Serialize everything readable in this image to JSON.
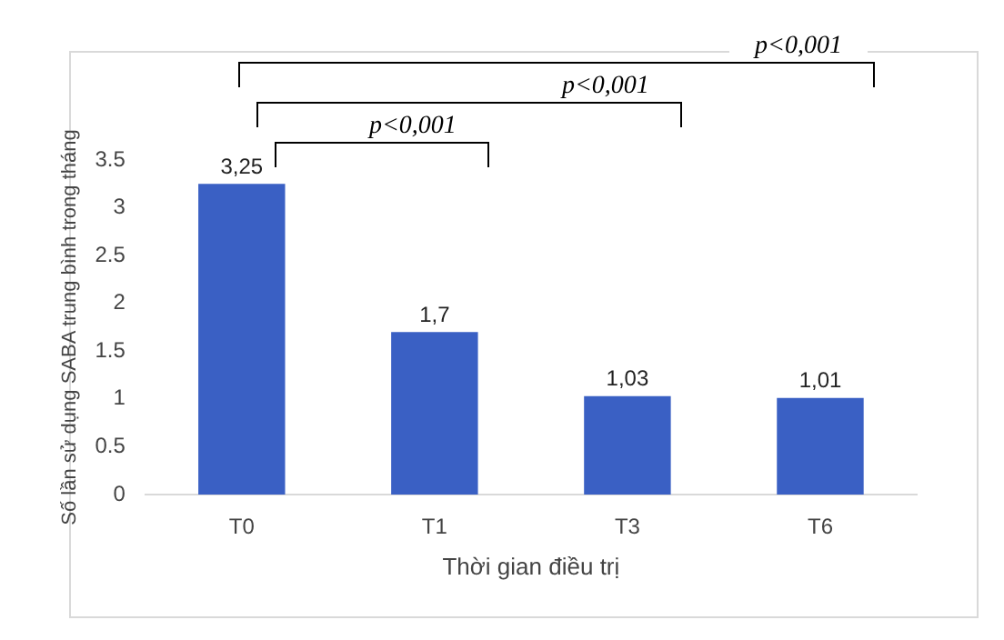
{
  "chart_data": {
    "type": "bar",
    "categories": [
      "T0",
      "T1",
      "T3",
      "T6"
    ],
    "values": [
      3.25,
      1.7,
      1.03,
      1.01
    ],
    "value_labels": [
      "3,25",
      "1,7",
      "1,03",
      "1,01"
    ],
    "color": "#3a60c4",
    "ylabel": "Số lần sử dụng SABA trung bình trong tháng",
    "xlabel": "Thời gian điều trị",
    "ylim": [
      0,
      3.5
    ],
    "yticks": [
      0,
      0.5,
      1,
      1.5,
      2,
      2.5,
      3,
      3.5
    ],
    "grid": false,
    "legend": false,
    "annotations": [
      "p<0,001",
      "p<0,001",
      "p<0,001"
    ]
  }
}
